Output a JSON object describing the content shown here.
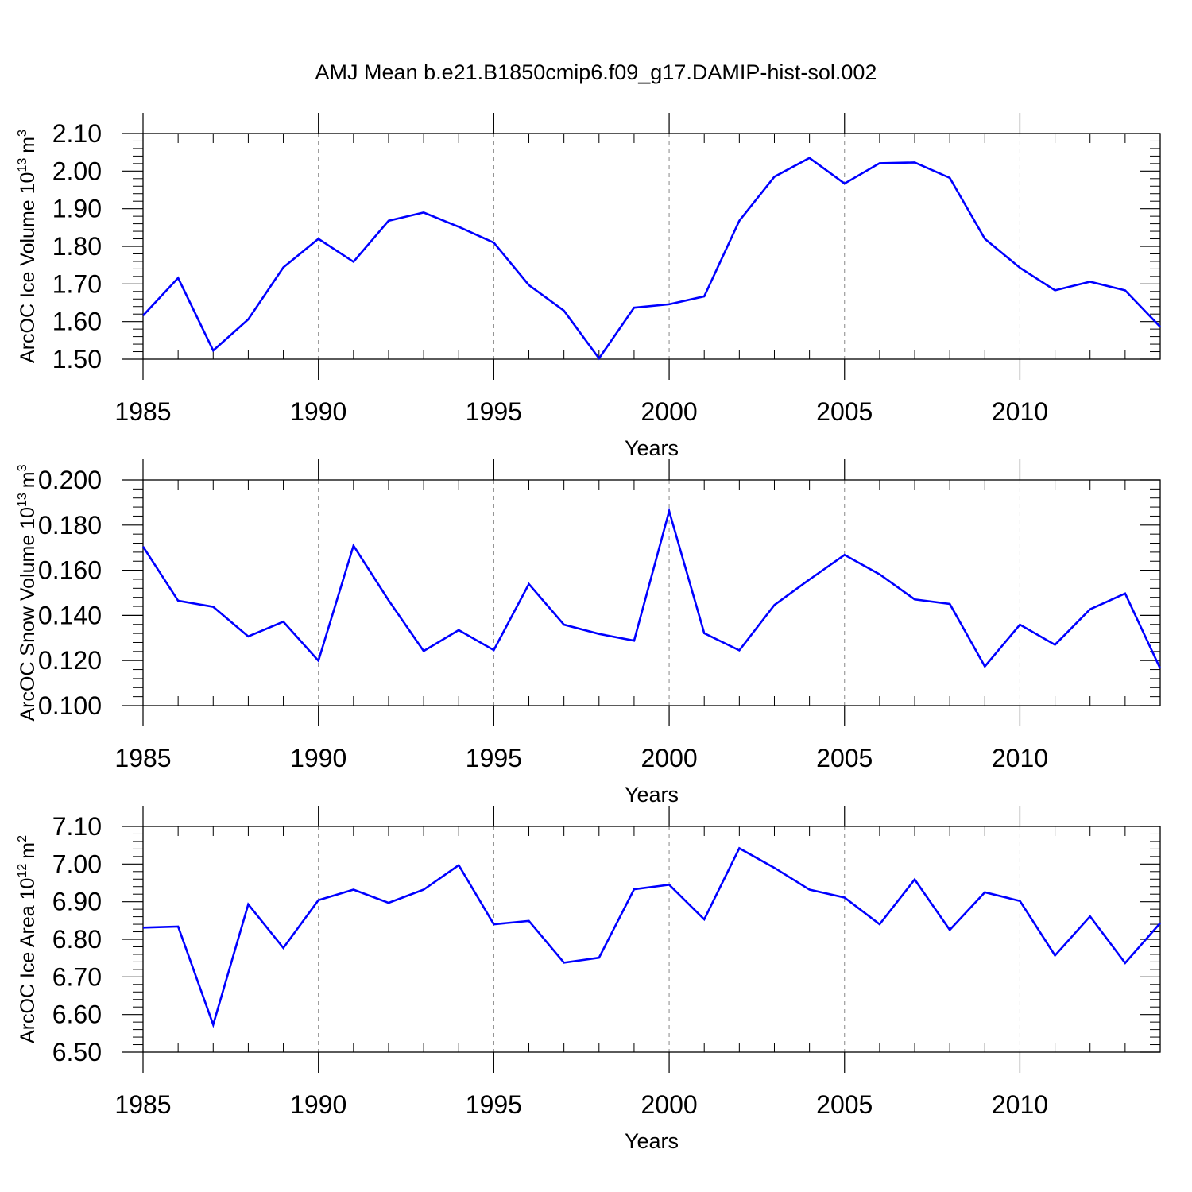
{
  "figure_title": "AMJ Mean b.e21.B1850cmip6.f09_g17.DAMIP-hist-sol.002",
  "line_color": "#0000ff",
  "chart_data": [
    {
      "type": "line",
      "title": "AMJ Mean b.e21.B1850cmip6.f09_g17.DAMIP-hist-sol.002",
      "xlabel": "Years",
      "ylabel_main": "ArcOC Ice Volume 10",
      "ylabel_sup": "13",
      "ylabel_unit": "m",
      "ylabel_unit_sup": "3",
      "xlim": [
        1985,
        2014
      ],
      "ylim": [
        1.5,
        2.1
      ],
      "x_ticks": [
        "1985",
        "1990",
        "1995",
        "2000",
        "2005",
        "2010"
      ],
      "y_ticks": [
        "1.50",
        "1.60",
        "1.70",
        "1.80",
        "1.90",
        "2.00",
        "2.10"
      ],
      "grid": "vertical dashed at major x ticks",
      "series": [
        {
          "x": [
            1985,
            1986,
            1987,
            1988,
            1989,
            1990,
            1991,
            1992,
            1993,
            1994,
            1995,
            1996,
            1997,
            1998,
            1999,
            2000,
            2001,
            2002,
            2003,
            2004,
            2005,
            2006,
            2007,
            2008,
            2009,
            2010,
            2011,
            2012,
            2013,
            2014
          ],
          "values": [
            1.616,
            1.716,
            1.523,
            1.606,
            1.744,
            1.82,
            1.759,
            1.868,
            1.89,
            1.852,
            1.81,
            1.697,
            1.629,
            1.502,
            1.637,
            1.646,
            1.667,
            1.868,
            1.985,
            2.035,
            1.967,
            2.021,
            2.023,
            1.982,
            1.82,
            1.743,
            1.683,
            1.706,
            1.683,
            1.586
          ]
        }
      ]
    },
    {
      "type": "line",
      "xlabel": "Years",
      "ylabel_main": "ArcOC Snow Volume 10",
      "ylabel_sup": "13",
      "ylabel_unit": "m",
      "ylabel_unit_sup": "3",
      "xlim": [
        1985,
        2014
      ],
      "ylim": [
        0.1,
        0.2
      ],
      "x_ticks": [
        "1985",
        "1990",
        "1995",
        "2000",
        "2005",
        "2010"
      ],
      "y_ticks": [
        "0.100",
        "0.120",
        "0.140",
        "0.160",
        "0.180",
        "0.200"
      ],
      "grid": "vertical dashed at major x ticks",
      "series": [
        {
          "x": [
            1985,
            1986,
            1987,
            1988,
            1989,
            1990,
            1991,
            1992,
            1993,
            1994,
            1995,
            1996,
            1997,
            1998,
            1999,
            2000,
            2001,
            2002,
            2003,
            2004,
            2005,
            2006,
            2007,
            2008,
            2009,
            2010,
            2011,
            2012,
            2013,
            2014
          ],
          "values": [
            0.1705,
            0.1465,
            0.1438,
            0.1307,
            0.1372,
            0.1199,
            0.1709,
            0.1467,
            0.1242,
            0.1335,
            0.1246,
            0.1539,
            0.1359,
            0.1318,
            0.1288,
            0.1862,
            0.1321,
            0.1245,
            0.1446,
            0.1559,
            0.1668,
            0.1582,
            0.1471,
            0.1451,
            0.1174,
            0.1359,
            0.127,
            0.1427,
            0.1497,
            0.1165
          ]
        }
      ]
    },
    {
      "type": "line",
      "xlabel": "Years",
      "ylabel_main": "ArcOC Ice Area 10",
      "ylabel_sup": "12",
      "ylabel_unit": "m",
      "ylabel_unit_sup": "2",
      "xlim": [
        1985,
        2014
      ],
      "ylim": [
        6.5,
        7.1
      ],
      "x_ticks": [
        "1985",
        "1990",
        "1995",
        "2000",
        "2005",
        "2010"
      ],
      "y_ticks": [
        "6.50",
        "6.60",
        "6.70",
        "6.80",
        "6.90",
        "7.00",
        "7.10"
      ],
      "grid": "vertical dashed at major x ticks",
      "series": [
        {
          "x": [
            1985,
            1986,
            1987,
            1988,
            1989,
            1990,
            1991,
            1992,
            1993,
            1994,
            1995,
            1996,
            1997,
            1998,
            1999,
            2000,
            2001,
            2002,
            2003,
            2004,
            2005,
            2006,
            2007,
            2008,
            2009,
            2010,
            2011,
            2012,
            2013,
            2014
          ],
          "values": [
            6.831,
            6.834,
            6.573,
            6.893,
            6.777,
            6.904,
            6.932,
            6.897,
            6.932,
            6.997,
            6.84,
            6.849,
            6.738,
            6.751,
            6.933,
            6.945,
            6.853,
            7.042,
            6.99,
            6.932,
            6.911,
            6.84,
            6.959,
            6.825,
            6.925,
            6.902,
            6.757,
            6.861,
            6.737,
            6.843
          ]
        }
      ]
    }
  ]
}
